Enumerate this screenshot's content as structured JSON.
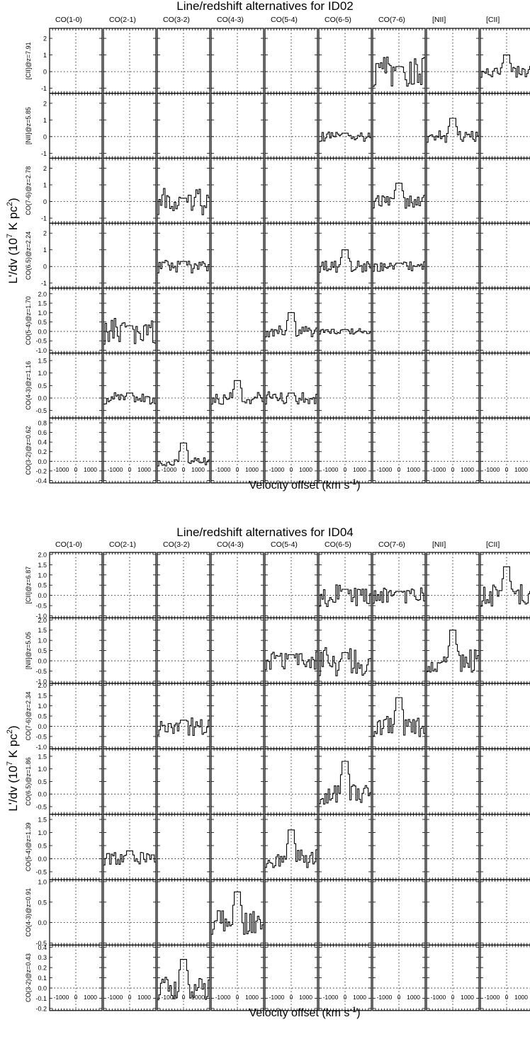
{
  "figure": {
    "ylabel_pre": "L'/dv (10",
    "ylabel_sup1": "7",
    "ylabel_mid": " K pc",
    "ylabel_sup2": "2",
    "ylabel_post": ")",
    "xlabel_pre": "Velocity offset (km s",
    "xlabel_sup": "-1",
    "xlabel_post": ")",
    "columns": [
      "CO(1-0)",
      "CO(2-1)",
      "CO(3-2)",
      "CO(4-3)",
      "CO(5-4)",
      "CO(6-5)",
      "CO(7-6)",
      "[NII]",
      "[CII]"
    ],
    "xticks": [
      "-1000",
      "0",
      "1000"
    ],
    "color": "#000000"
  },
  "chart_data": [
    {
      "type": "line",
      "title": "Line/redshift alternatives for ID02",
      "xlabel": "Velocity offset (km s-1)",
      "ylabel": "L'/dv (10^7 K pc^2)",
      "xlim": [
        -1800,
        1800
      ],
      "rows": [
        {
          "label": "[CII]@z=7.91",
          "yticks": [
            "2",
            "1",
            "0",
            "-1"
          ],
          "ylim": [
            -1.3,
            2.6
          ],
          "series": {
            "CO(7-6)": {
              "amp": 0.9,
              "peak": 0.3
            },
            "[CII]": {
              "amp": 0.35,
              "peak": 1.0
            }
          }
        },
        {
          "label": "[NII]@z=5.85",
          "yticks": [
            "2",
            "1",
            "0",
            "-1"
          ],
          "ylim": [
            -1.3,
            2.6
          ],
          "series": {
            "CO(6-5)": {
              "amp": 0.3,
              "peak": 0.2
            },
            "[NII]": {
              "amp": 0.35,
              "peak": 1.1
            }
          }
        },
        {
          "label": "CO(7-6)@z=2.78",
          "yticks": [
            "2",
            "1",
            "0",
            "-1"
          ],
          "ylim": [
            -1.3,
            2.6
          ],
          "series": {
            "CO(3-2)": {
              "amp": 0.8,
              "peak": 0.2
            },
            "CO(7-6)": {
              "amp": 0.4,
              "peak": 1.1
            }
          }
        },
        {
          "label": "CO(6.5)@z=2.24",
          "yticks": [
            "2",
            "1",
            "0",
            "-1"
          ],
          "ylim": [
            -1.3,
            2.6
          ],
          "series": {
            "CO(3-2)": {
              "amp": 0.4,
              "peak": 0.3
            },
            "CO(6-5)": {
              "amp": 0.35,
              "peak": 1.0
            },
            "CO(7-6)": {
              "amp": 0.3,
              "peak": 0.2
            }
          }
        },
        {
          "label": "CO(5-4)@z=1.70",
          "yticks": [
            "2.0",
            "1.5",
            "1.0",
            "0.5",
            "0.0",
            "-0.5",
            "-1.0"
          ],
          "ylim": [
            -1.15,
            2.3
          ],
          "series": {
            "CO(2-1)": {
              "amp": 0.7,
              "peak": 0.3
            },
            "CO(5-4)": {
              "amp": 0.3,
              "peak": 1.0
            },
            "CO(6-5)": {
              "amp": 0.15,
              "peak": 0.1
            }
          }
        },
        {
          "label": "CO(4-3)@z=1.16",
          "yticks": [
            "1.5",
            "1.0",
            "0.5",
            "0.0",
            "-0.5"
          ],
          "ylim": [
            -0.8,
            1.8
          ],
          "series": {
            "CO(2-1)": {
              "amp": 0.25,
              "peak": 0.2
            },
            "CO(4-3)": {
              "amp": 0.25,
              "peak": 0.7
            },
            "CO(5-4)": {
              "amp": 0.25,
              "peak": 0.2
            }
          }
        },
        {
          "label": "CO(3-2)@z=0.62",
          "yticks": [
            "0.8",
            "0.6",
            "0.4",
            "0.2",
            "0.0",
            "-0.2",
            "-0.4"
          ],
          "ylim": [
            -0.45,
            0.9
          ],
          "series": {
            "CO(3-2)": {
              "amp": 0.1,
              "peak": 0.38
            }
          }
        }
      ]
    },
    {
      "type": "line",
      "title": "Line/redshift alternatives for ID04",
      "xlabel": "Velocity offset (km s-1)",
      "ylabel": "L'/dv (10^7 K pc^2)",
      "xlim": [
        -1800,
        1800
      ],
      "rows": [
        {
          "label": "[CII]@z=6.87",
          "yticks": [
            "2.0",
            "1.5",
            "1.0",
            "0.5",
            "0.0",
            "-0.5",
            "-1.0"
          ],
          "ylim": [
            -1.1,
            2.1
          ],
          "series": {
            "CO(6-5)": {
              "amp": 0.55,
              "peak": 0.3
            },
            "CO(7-6)": {
              "amp": 0.4,
              "peak": 0.2
            },
            "[CII]": {
              "amp": 0.55,
              "peak": 1.4
            }
          }
        },
        {
          "label": "[NII]@z=5.05",
          "yticks": [
            "2.0",
            "1.5",
            "1.0",
            "0.5",
            "0.0",
            "-0.5",
            "-1.0"
          ],
          "ylim": [
            -1.1,
            2.1
          ],
          "series": {
            "CO(5-4)": {
              "amp": 0.45,
              "peak": 0.3
            },
            "CO(6-5)": {
              "amp": 0.75,
              "peak": 0.4
            },
            "[NII]": {
              "amp": 0.55,
              "peak": 1.5
            }
          }
        },
        {
          "label": "CO(7-6)@z=2.34",
          "yticks": [
            "2.0",
            "1.5",
            "1.0",
            "0.5",
            "0.0",
            "-0.5",
            "-1.0"
          ],
          "ylim": [
            -1.1,
            2.1
          ],
          "series": {
            "CO(3-2)": {
              "amp": 0.45,
              "peak": 0.3
            },
            "CO(7-6)": {
              "amp": 0.5,
              "peak": 1.4
            }
          }
        },
        {
          "label": "CO(6.5)@z=1.86",
          "yticks": [
            "1.5",
            "1.0",
            "0.5",
            "0.0",
            "-0.5"
          ],
          "ylim": [
            -0.8,
            1.8
          ],
          "series": {
            "CO(6-5)": {
              "amp": 0.4,
              "peak": 1.3
            }
          }
        },
        {
          "label": "CO(5-4)@z=1.39",
          "yticks": [
            "1.5",
            "1.0",
            "0.5",
            "0.0",
            "-0.5"
          ],
          "ylim": [
            -0.8,
            1.7
          ],
          "series": {
            "CO(2-1)": {
              "amp": 0.25,
              "peak": 0.3
            },
            "CO(5-4)": {
              "amp": 0.35,
              "peak": 1.1
            }
          }
        },
        {
          "label": "CO(4-3)@z=0.91",
          "yticks": [
            "1.0",
            "0.5",
            "0.0",
            "-0.5"
          ],
          "ylim": [
            -0.55,
            1.05
          ],
          "series": {
            "CO(4-3)": {
              "amp": 0.3,
              "peak": 0.75
            }
          }
        },
        {
          "label": "CO(3-2)@z=0.43",
          "yticks": [
            "0.4",
            "0.3",
            "0.2",
            "0.1",
            "0.0",
            "-0.1",
            "-0.2"
          ],
          "ylim": [
            -0.22,
            0.42
          ],
          "series": {
            "CO(3-2)": {
              "amp": 0.12,
              "peak": 0.28
            }
          }
        }
      ]
    }
  ]
}
